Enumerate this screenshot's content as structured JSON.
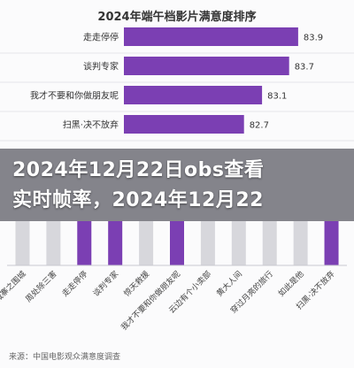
{
  "overlay": {
    "line1": "2024年12月22日obs查看",
    "line2": "实时帧率，2024年12月22"
  },
  "source": "来源：中国电影观众满意度调查",
  "chart_data": [
    {
      "type": "bar",
      "orientation": "horizontal",
      "title": "2024年端午档影片满意度排序",
      "categories": [
        "走走停停",
        "谈判专家",
        "我才不要和你做朋友呢",
        "扫黑·决不放弃"
      ],
      "values": [
        83.9,
        83.7,
        83.1,
        82.7
      ],
      "color": "#7b3fb3"
    },
    {
      "type": "bar",
      "orientation": "vertical",
      "categories": [
        "九龙城寨之围城",
        "周处除三害",
        "走走停停",
        "谈判专家",
        "惊天救援",
        "我才不要和你做朋友呢",
        "云边有个小卖部",
        "黄大人间",
        "穿过月亮的旅行",
        "如此是他",
        "扫黑·决不放弃"
      ],
      "highlight": [
        false,
        false,
        true,
        true,
        false,
        true,
        false,
        false,
        false,
        false,
        true
      ],
      "colors": {
        "highlight": "#7b3fb3",
        "base": "#d7d7dc"
      }
    }
  ]
}
